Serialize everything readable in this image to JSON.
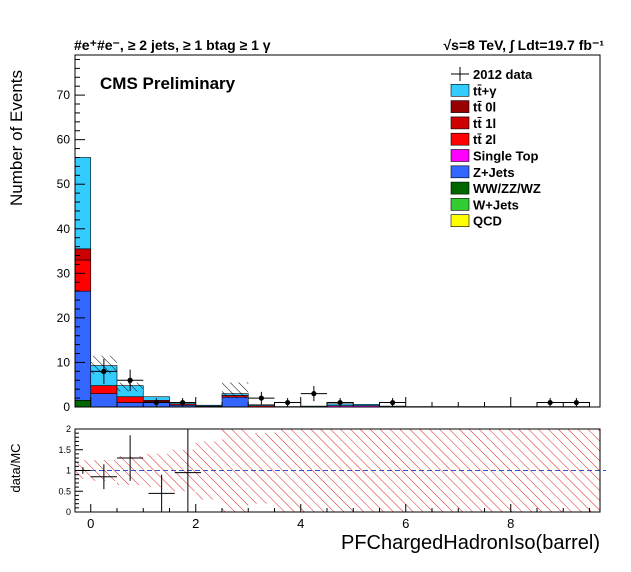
{
  "header": {
    "left": "#e⁺#e⁻, ≥ 2 jets, ≥ 1 btag ≥ 1 γ",
    "right": "√s=8 TeV,  ∫ Ldt=19.7 fb⁻¹"
  },
  "label": "CMS Preliminary",
  "colors": {
    "ttgamma": "#33ccff",
    "tt0l": "#990000",
    "tt1l": "#cc0000",
    "tt2l": "#ff0000",
    "singletop": "#ff00ff",
    "zjets": "#3366ff",
    "wwzzwz": "#006600",
    "wjets": "#33cc33",
    "qcd": "#ffff00",
    "ratio_band": "#dd2222",
    "ratio_line": "#3355cc"
  },
  "chart_data": [
    {
      "type": "bar",
      "stacked": true,
      "xlabel": "PFChargedHadronIso(barrel)",
      "ylabel": "Number of Events",
      "xlim": [
        -0.3,
        9.7
      ],
      "ylim": [
        0,
        79
      ],
      "x_ticks": [
        0,
        2,
        4,
        6,
        8
      ],
      "y_ticks": [
        0,
        10,
        20,
        30,
        40,
        50,
        60,
        70
      ],
      "bin_width": 0.5,
      "bin_low_edges": [
        -0.3,
        0.0,
        0.5,
        1.0,
        1.5,
        2.0,
        2.5,
        3.0,
        3.5,
        4.0,
        4.5,
        5.0,
        5.5,
        6.0,
        6.5,
        7.0,
        7.5,
        8.0,
        8.5,
        9.0
      ],
      "legend_placement": "top-right",
      "legend": [
        {
          "label": "2012 data",
          "style": "marker"
        },
        {
          "label": "tt̄+γ",
          "key": "ttgamma"
        },
        {
          "label": "tt̄ 0l",
          "key": "tt0l"
        },
        {
          "label": "tt̄ 1l",
          "key": "tt1l"
        },
        {
          "label": "tt̄ 2l",
          "key": "tt2l"
        },
        {
          "label": "Single Top",
          "key": "singletop"
        },
        {
          "label": "Z+Jets",
          "key": "zjets"
        },
        {
          "label": "WW/ZZ/WZ",
          "key": "wwzzwz"
        },
        {
          "label": "W+Jets",
          "key": "wjets"
        },
        {
          "label": "QCD",
          "key": "qcd"
        }
      ],
      "series": [
        {
          "key": "wwzzwz",
          "values": [
            1.5,
            0,
            0,
            0,
            0,
            0,
            0,
            0,
            0,
            0,
            0,
            0,
            0,
            0,
            0,
            0,
            0,
            0,
            0,
            0
          ]
        },
        {
          "key": "zjets",
          "values": [
            24.5,
            3,
            1,
            1.2,
            0.4,
            0.2,
            2.2,
            0,
            0,
            0,
            0,
            0,
            0,
            0,
            0,
            0,
            0,
            0,
            0,
            0
          ]
        },
        {
          "key": "singletop",
          "values": [
            0,
            0,
            0,
            0,
            0,
            0,
            0,
            0,
            0,
            0,
            0.3,
            0.3,
            0,
            0,
            0,
            0,
            0,
            0,
            0,
            0
          ]
        },
        {
          "key": "tt2l",
          "values": [
            7,
            1.8,
            1.3,
            0.3,
            0.3,
            0,
            0.4,
            0.3,
            0,
            0,
            0,
            0,
            0,
            0,
            0,
            0,
            0,
            0,
            0,
            0
          ]
        },
        {
          "key": "tt1l",
          "values": [
            2.5,
            0,
            0,
            0,
            0,
            0,
            0,
            0,
            0,
            0,
            0,
            0,
            0,
            0,
            0,
            0,
            0,
            0,
            0,
            0
          ]
        },
        {
          "key": "ttgamma",
          "values": [
            20.5,
            4.5,
            2.5,
            0.8,
            0.3,
            0.2,
            0.4,
            0.2,
            0.1,
            0.2,
            0.4,
            0.3,
            0.2,
            0.1,
            0.1,
            0.1,
            0.1,
            0.1,
            0.1,
            0.1
          ]
        }
      ],
      "uncertainty_band": [
        {
          "x0": 0.0,
          "x1": 0.5,
          "low": 7.5,
          "high": 11.5
        },
        {
          "x0": 0.5,
          "x1": 1.0,
          "low": 3.5,
          "high": 5.5
        },
        {
          "x0": 2.5,
          "x1": 3.0,
          "low": 2.0,
          "high": 5.5
        }
      ],
      "data_points": [
        {
          "x": 0.25,
          "y": 8,
          "yerr": 2.8,
          "xerr": 0.25
        },
        {
          "x": 0.75,
          "y": 6,
          "yerr": 2.4,
          "xerr": 0.25
        },
        {
          "x": 1.25,
          "y": 1,
          "yerr": 1,
          "xerr": 0.25
        },
        {
          "x": 1.75,
          "y": 1,
          "yerr": 1,
          "xerr": 0.25
        },
        {
          "x": 3.25,
          "y": 2,
          "yerr": 1.4,
          "xerr": 0.25
        },
        {
          "x": 3.75,
          "y": 1,
          "yerr": 1,
          "xerr": 0.25
        },
        {
          "x": 4.25,
          "y": 3,
          "yerr": 1.7,
          "xerr": 0.25
        },
        {
          "x": 4.75,
          "y": 1,
          "yerr": 1,
          "xerr": 0.25
        },
        {
          "x": 5.75,
          "y": 1,
          "yerr": 1,
          "xerr": 0.25
        },
        {
          "x": 8.75,
          "y": 1,
          "yerr": 1,
          "xerr": 0.25
        },
        {
          "x": 9.25,
          "y": 1,
          "yerr": 1,
          "xerr": 0.25
        }
      ]
    },
    {
      "type": "scatter",
      "ylabel": "data/MC",
      "xlim": [
        -0.3,
        9.7
      ],
      "ylim": [
        0,
        2
      ],
      "x_ticks": [
        0,
        2,
        4,
        6,
        8
      ],
      "y_ticks": [
        0,
        0.5,
        1,
        1.5,
        2
      ],
      "y_tick_labels": [
        "0",
        "0.5",
        "1",
        "1.5",
        "2"
      ],
      "reference_line": 1,
      "band": [
        {
          "x0": -0.3,
          "x1": 0.0,
          "low": 0.8,
          "high": 1.25
        },
        {
          "x0": 0.0,
          "x1": 0.5,
          "low": 0.75,
          "high": 1.25
        },
        {
          "x0": 0.5,
          "x1": 1.0,
          "low": 0.65,
          "high": 1.35
        },
        {
          "x0": 1.0,
          "x1": 1.5,
          "low": 0.6,
          "high": 1.4
        },
        {
          "x0": 1.5,
          "x1": 2.0,
          "low": 0.5,
          "high": 1.5
        },
        {
          "x0": 2.0,
          "x1": 2.5,
          "low": 0.3,
          "high": 1.7
        },
        {
          "x0": 2.5,
          "x1": 3.0,
          "low": 0.0,
          "high": 2.0
        },
        {
          "x0": 3.0,
          "x1": 3.5,
          "low": 0.2,
          "high": 1.9
        },
        {
          "x0": 3.5,
          "x1": 4.0,
          "low": 0.0,
          "high": 2.0
        },
        {
          "x0": 4.0,
          "x1": 4.5,
          "low": 0.0,
          "high": 2.0
        },
        {
          "x0": 4.5,
          "x1": 5.0,
          "low": 0.0,
          "high": 2.0
        },
        {
          "x0": 5.0,
          "x1": 5.5,
          "low": 0.0,
          "high": 2.0
        },
        {
          "x0": 5.5,
          "x1": 6.0,
          "low": 0.0,
          "high": 2.0
        },
        {
          "x0": 6.0,
          "x1": 6.5,
          "low": 0.0,
          "high": 2.0
        },
        {
          "x0": 6.5,
          "x1": 7.0,
          "low": 0.0,
          "high": 2.0
        },
        {
          "x0": 7.0,
          "x1": 7.5,
          "low": 0.0,
          "high": 2.0
        },
        {
          "x0": 7.5,
          "x1": 8.0,
          "low": 0.0,
          "high": 2.0
        },
        {
          "x0": 8.0,
          "x1": 8.5,
          "low": 0.0,
          "high": 2.0
        },
        {
          "x0": 8.5,
          "x1": 9.0,
          "low": 0.0,
          "high": 2.0
        },
        {
          "x0": 9.0,
          "x1": 9.7,
          "low": 0.0,
          "high": 2.0
        }
      ],
      "points": [
        {
          "x": -0.15,
          "y": 1.0,
          "yerr": 0.08,
          "xerr": 0.15
        },
        {
          "x": 0.25,
          "y": 0.85,
          "yerr": 0.3,
          "xerr": 0.25
        },
        {
          "x": 0.75,
          "y": 1.3,
          "yerr": 0.55,
          "xerr": 0.25
        },
        {
          "x": 1.35,
          "y": 0.45,
          "yerr": 0.45,
          "xerr": 0.25
        },
        {
          "x": 1.85,
          "y": 0.95,
          "yerr": 1.05,
          "xerr": 0.25
        }
      ]
    }
  ]
}
